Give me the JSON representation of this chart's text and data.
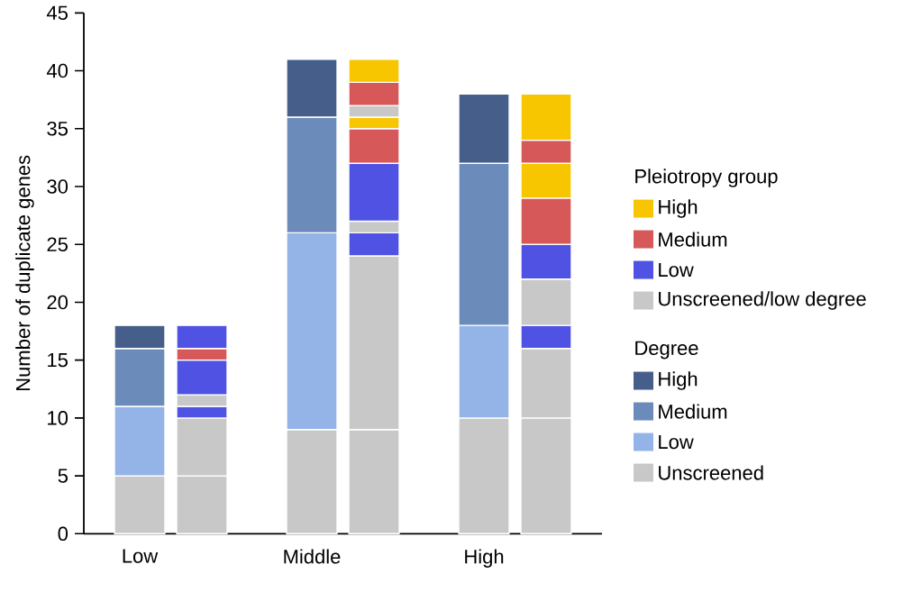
{
  "chart_data": {
    "type": "bar",
    "stacked": true,
    "ylabel": "Number of duplicate genes",
    "categories": [
      "Low",
      null,
      "Middle",
      null,
      "High",
      null
    ],
    "ylim": [
      0,
      45
    ],
    "yticks": [
      0,
      5,
      10,
      15,
      20,
      25,
      30,
      35,
      40,
      45
    ],
    "grid": false,
    "legend": "right",
    "legend_title": "Pleiotropy group",
    "annotations": [
      "Degree"
    ],
    "series": [
      {
        "name": "Unscreened",
        "color": "#c8c8c8",
        "values": [
          5,
          null,
          9,
          null,
          10,
          null
        ]
      },
      {
        "name": "Low",
        "color": "#94b4e8",
        "values": [
          6,
          null,
          17,
          null,
          8,
          null
        ]
      },
      {
        "name": "Medium",
        "color": "#6b8cba",
        "values": [
          5,
          null,
          10,
          null,
          14,
          null
        ]
      },
      {
        "name": "High",
        "color": "#465f8a",
        "values": [
          2,
          null,
          5,
          null,
          6,
          null
        ]
      },
      {
        "name": "Unscreened/low degree",
        "color": "#c8c8c8",
        "values": [
          null,
          5,
          null,
          9,
          null,
          10
        ]
      },
      {
        "color": "#c8c8c8",
        "values": [
          null,
          5,
          null,
          15,
          null,
          6
        ]
      },
      {
        "name": "Low",
        "color": "#4f52e2",
        "values": [
          null,
          1,
          null,
          2,
          null,
          2
        ]
      },
      {
        "color": "#c8c8c8",
        "values": [
          null,
          1,
          null,
          1,
          null,
          4
        ]
      },
      {
        "color": "#4f52e2",
        "values": [
          null,
          3,
          null,
          5,
          null,
          3
        ]
      },
      {
        "name": "Medium",
        "color": "#d75858",
        "values": [
          null,
          1,
          null,
          3,
          null,
          4
        ]
      },
      {
        "name": "High",
        "color": "#f7c600",
        "values": [
          null,
          null,
          null,
          1,
          null,
          3
        ]
      },
      {
        "color": "#c8c8c8",
        "values": [
          null,
          null,
          null,
          1,
          null,
          null
        ]
      },
      {
        "color": "#4f52e2",
        "values": [
          null,
          2,
          null,
          null,
          null,
          null
        ]
      },
      {
        "color": "#d75858",
        "values": [
          null,
          null,
          null,
          2,
          null,
          2
        ]
      },
      {
        "color": "#f7c600",
        "values": [
          null,
          null,
          null,
          2,
          null,
          4
        ]
      }
    ]
  }
}
